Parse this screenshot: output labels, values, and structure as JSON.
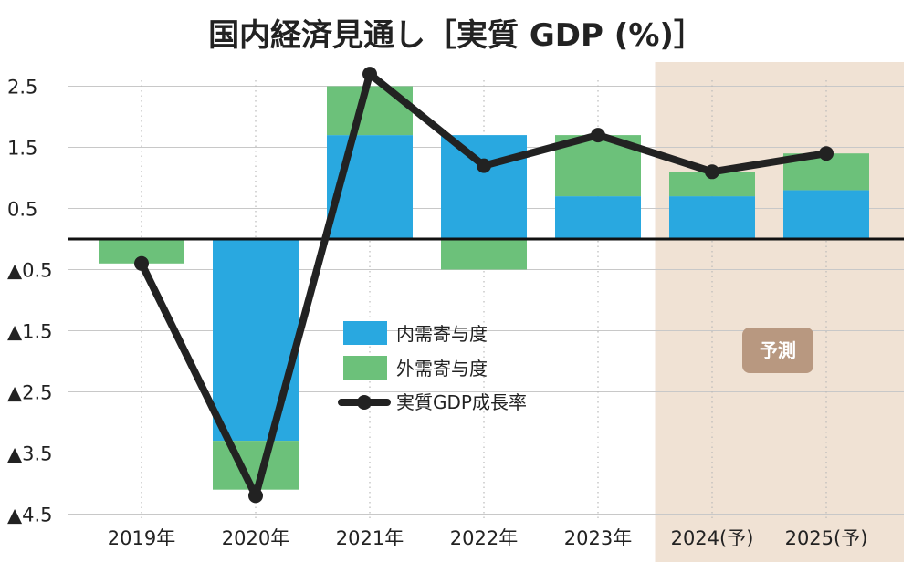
{
  "chart_data": {
    "type": "bar",
    "title": "国内経済見通し［実質 GDP (%)］",
    "categories": [
      "2019年",
      "2020年",
      "2021年",
      "2022年",
      "2023年",
      "2024(予)",
      "2025(予)"
    ],
    "series": [
      {
        "name": "内需寄与度",
        "kind": "stacked-bar",
        "values": [
          0.0,
          -3.3,
          1.7,
          1.7,
          0.7,
          0.7,
          0.8
        ]
      },
      {
        "name": "外需寄与度",
        "kind": "stacked-bar",
        "values": [
          -0.4,
          -0.8,
          0.8,
          -0.5,
          1.0,
          0.4,
          0.6
        ]
      },
      {
        "name": "実質GDP成長率",
        "kind": "line",
        "values": [
          -0.4,
          -4.2,
          2.7,
          1.2,
          1.7,
          1.1,
          1.4
        ]
      }
    ],
    "y_ticks": [
      {
        "value": 2.5,
        "label": "2.5"
      },
      {
        "value": 1.5,
        "label": "1.5"
      },
      {
        "value": 0.5,
        "label": "0.5"
      },
      {
        "value": -0.5,
        "label": "▲0.5"
      },
      {
        "value": -1.5,
        "label": "▲1.5"
      },
      {
        "value": -2.5,
        "label": "▲2.5"
      },
      {
        "value": -3.5,
        "label": "▲3.5"
      },
      {
        "value": -4.5,
        "label": "▲4.5"
      }
    ],
    "ylim": [
      -4.5,
      2.9
    ],
    "grid": true,
    "legend_position": "center",
    "forecast": {
      "label": "予測",
      "categories": [
        "2024(予)",
        "2025(予)"
      ]
    },
    "colors": {
      "domestic": "#29a8e0",
      "external": "#6cc17a",
      "line": "#222222",
      "forecast_bg": "#f0e2d4",
      "badge": "#b89880",
      "grid": "#c8c8c8"
    }
  }
}
